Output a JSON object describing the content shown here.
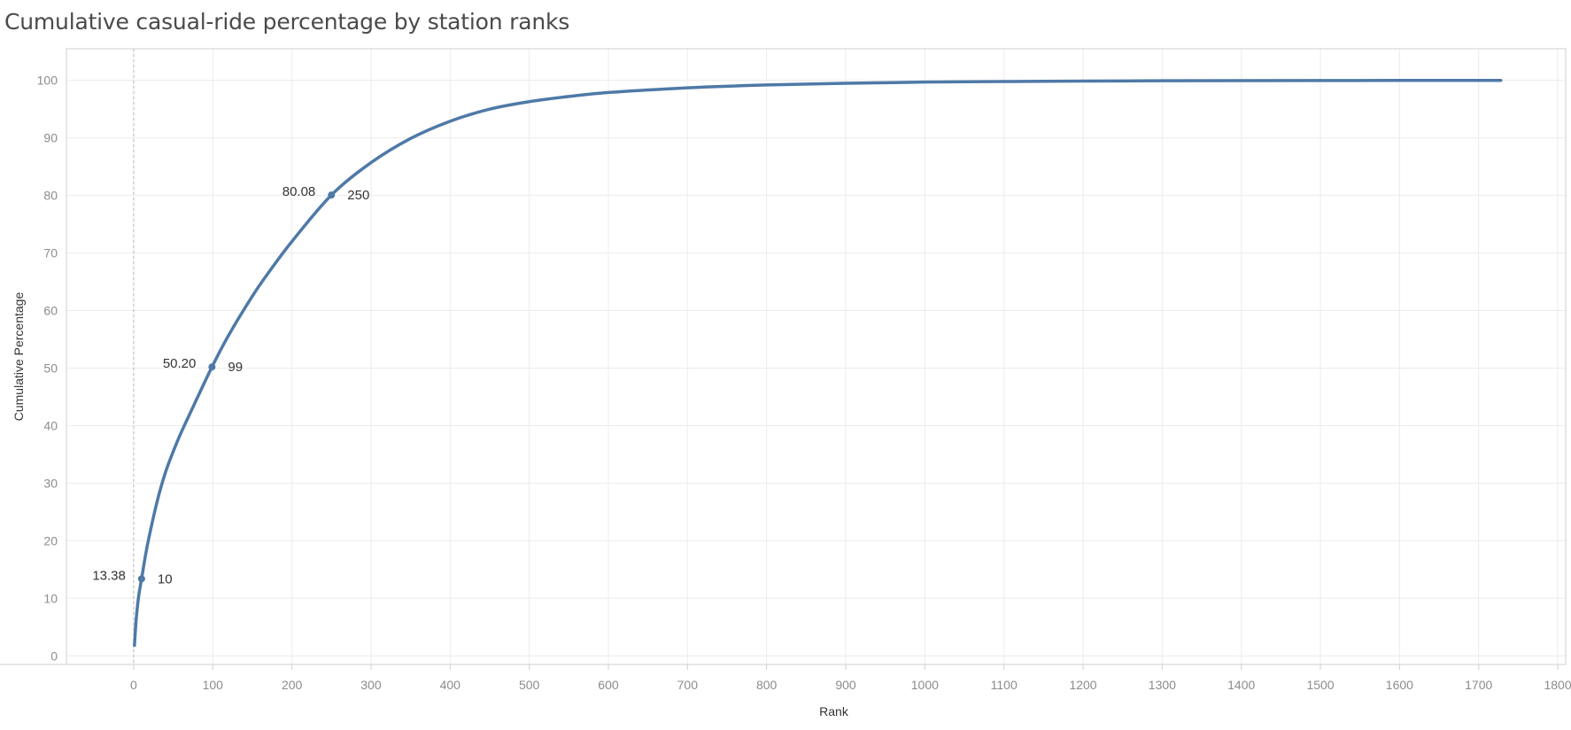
{
  "chart_data": {
    "type": "line",
    "title": "Cumulative casual-ride percentage by station ranks",
    "xlabel": "Rank",
    "ylabel": "Cumulative Percentage",
    "xlim": [
      -85,
      1810
    ],
    "ylim": [
      -1.5,
      105.5
    ],
    "x_ticks": [
      0,
      100,
      200,
      300,
      400,
      500,
      600,
      700,
      800,
      900,
      1000,
      1100,
      1200,
      1300,
      1400,
      1500,
      1600,
      1700,
      1800
    ],
    "y_ticks": [
      0,
      10,
      20,
      30,
      40,
      50,
      60,
      70,
      80,
      90,
      100
    ],
    "grid": true,
    "colors": {
      "line": "#4e79a7",
      "grid": "#ececec",
      "axis": "#cfcfcf"
    },
    "series": [
      {
        "x": [
          1,
          3,
          5,
          7,
          10,
          15,
          20,
          30,
          40,
          50,
          60,
          80,
          99,
          120,
          150,
          170,
          200,
          250,
          300,
          350,
          400,
          450,
          500,
          550,
          600,
          700,
          800,
          900,
          1000,
          1100,
          1200,
          1300,
          1400,
          1500,
          1600,
          1700,
          1728
        ],
        "y": [
          1.8,
          6.0,
          8.9,
          11.0,
          13.38,
          17.5,
          21.0,
          27.0,
          31.8,
          35.5,
          38.8,
          44.7,
          50.2,
          55.7,
          62.5,
          66.5,
          72.0,
          80.08,
          85.7,
          89.9,
          92.9,
          95.0,
          96.3,
          97.2,
          97.9,
          98.7,
          99.2,
          99.5,
          99.7,
          99.8,
          99.88,
          99.93,
          99.96,
          99.98,
          99.99,
          100,
          100
        ]
      }
    ],
    "highlighted_points": [
      {
        "x": 10,
        "y": 13.38,
        "y_label": "13.38",
        "x_label": "10"
      },
      {
        "x": 99,
        "y": 50.2,
        "y_label": "50.20",
        "x_label": "99"
      },
      {
        "x": 250,
        "y": 80.08,
        "y_label": "80.08",
        "x_label": "250"
      }
    ]
  }
}
